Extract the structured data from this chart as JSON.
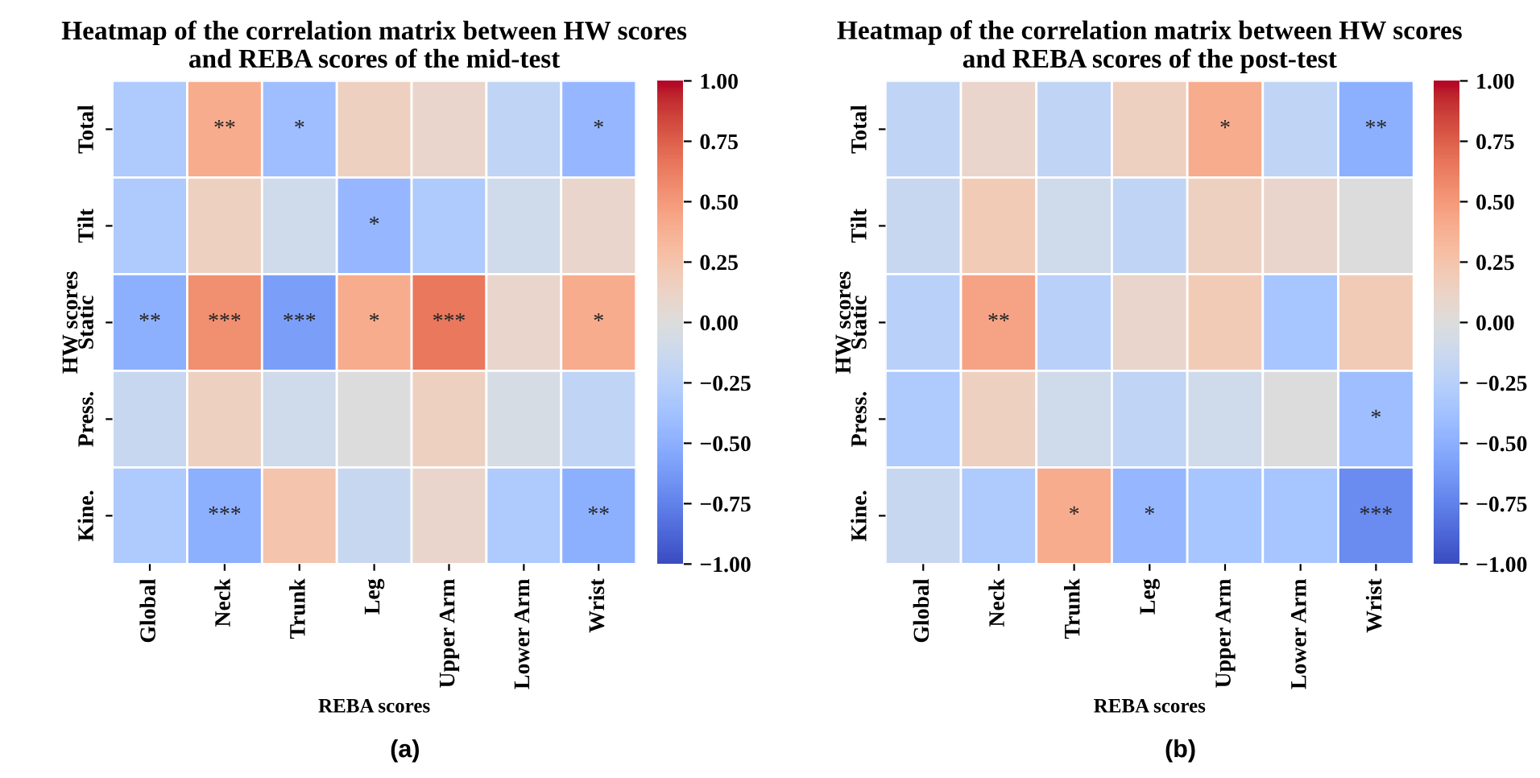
{
  "chart_data": [
    {
      "type": "heatmap",
      "title": "Heatmap of the correlation matrix between HW scores\nand REBA scores of the mid-test",
      "xlabel": "REBA scores",
      "ylabel": "HW scores",
      "categories": [
        "Global",
        "Neck",
        "Trunk",
        "Leg",
        "Upper Arm",
        "Lower Arm",
        "Wrist"
      ],
      "y_categories": [
        "Total",
        "Tilt",
        "Static",
        "Press.",
        "Kine."
      ],
      "cells": [
        [
          -0.3,
          0.4,
          -0.4,
          0.15,
          0.1,
          -0.2,
          -0.45
        ],
        [
          -0.3,
          0.15,
          -0.1,
          -0.45,
          -0.3,
          -0.1,
          0.1
        ],
        [
          -0.5,
          0.55,
          -0.6,
          0.4,
          0.65,
          0.1,
          0.4
        ],
        [
          -0.15,
          0.15,
          -0.1,
          0.0,
          0.15,
          -0.05,
          -0.2
        ],
        [
          -0.3,
          -0.5,
          0.25,
          -0.15,
          0.1,
          -0.3,
          -0.5
        ]
      ],
      "cell_labels": [
        [
          null,
          "**",
          "*",
          null,
          null,
          null,
          "*"
        ],
        [
          null,
          null,
          null,
          "*",
          null,
          null,
          null
        ],
        [
          "**",
          "***",
          "***",
          "*",
          "***",
          null,
          "*"
        ],
        [
          null,
          null,
          null,
          null,
          null,
          null,
          null
        ],
        [
          null,
          "***",
          null,
          null,
          null,
          null,
          "**"
        ]
      ],
      "clim": [
        -1,
        1
      ],
      "cticks": [
        {
          "value": -1,
          "label": "−1.00"
        },
        {
          "value": -0.75,
          "label": "−0.75"
        },
        {
          "value": -0.5,
          "label": "−0.50"
        },
        {
          "value": -0.25,
          "label": "−0.25"
        },
        {
          "value": 0,
          "label": "0.00"
        },
        {
          "value": 0.25,
          "label": "0.25"
        },
        {
          "value": 0.5,
          "label": "0.50"
        },
        {
          "value": 0.75,
          "label": "0.75"
        },
        {
          "value": 1,
          "label": "1.00"
        }
      ],
      "annotations": [
        "(a)"
      ]
    },
    {
      "type": "heatmap",
      "title": "Heatmap of the correlation matrix between HW scores\nand REBA scores of the post-test",
      "xlabel": "REBA scores",
      "ylabel": "HW scores",
      "categories": [
        "Global",
        "Neck",
        "Trunk",
        "Leg",
        "Upper Arm",
        "Lower Arm",
        "Wrist"
      ],
      "y_categories": [
        "Total",
        "Tilt",
        "Static",
        "Press.",
        "Kine."
      ],
      "cells": [
        [
          -0.2,
          0.1,
          -0.2,
          0.15,
          0.4,
          -0.2,
          -0.5
        ],
        [
          -0.15,
          0.2,
          -0.1,
          -0.2,
          0.15,
          0.1,
          0.0
        ],
        [
          -0.25,
          0.45,
          -0.25,
          0.1,
          0.2,
          -0.35,
          0.2
        ],
        [
          -0.3,
          0.15,
          -0.1,
          -0.2,
          -0.1,
          0.0,
          -0.4
        ],
        [
          -0.15,
          -0.3,
          0.4,
          -0.45,
          -0.35,
          -0.35,
          -0.7
        ]
      ],
      "cell_labels": [
        [
          null,
          null,
          null,
          null,
          "*",
          null,
          "**"
        ],
        [
          null,
          null,
          null,
          null,
          null,
          null,
          null
        ],
        [
          null,
          "**",
          null,
          null,
          null,
          null,
          null
        ],
        [
          null,
          null,
          null,
          null,
          null,
          null,
          "*"
        ],
        [
          null,
          null,
          "*",
          "*",
          null,
          null,
          "***"
        ]
      ],
      "clim": [
        -1,
        1
      ],
      "cticks": [
        {
          "value": -1,
          "label": "−1.00"
        },
        {
          "value": -0.75,
          "label": "−0.75"
        },
        {
          "value": -0.5,
          "label": "−0.50"
        },
        {
          "value": -0.25,
          "label": "−0.25"
        },
        {
          "value": 0,
          "label": "0.00"
        },
        {
          "value": 0.25,
          "label": "0.25"
        },
        {
          "value": 0.5,
          "label": "0.50"
        },
        {
          "value": 0.75,
          "label": "0.75"
        },
        {
          "value": 1,
          "label": "1.00"
        }
      ],
      "annotations": [
        "(b)"
      ]
    }
  ]
}
